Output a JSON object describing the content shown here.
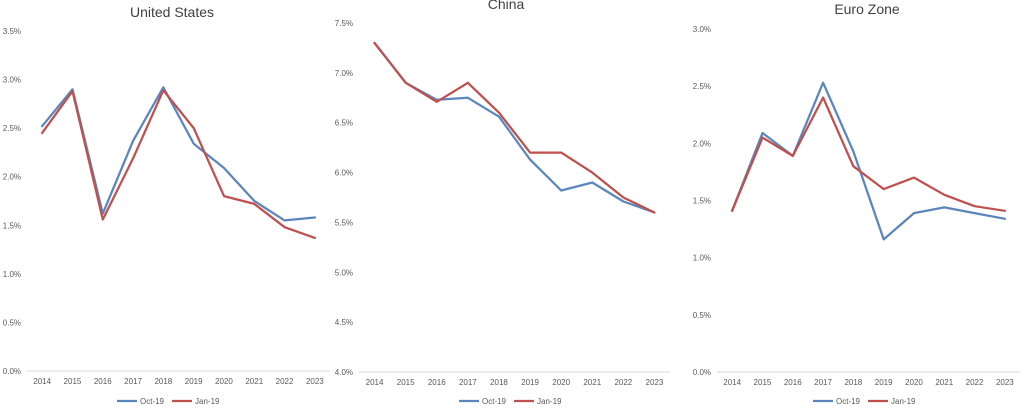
{
  "chart_data": [
    {
      "type": "line",
      "title": "United States",
      "xlabel": "",
      "ylabel": "",
      "categories": [
        "2014",
        "2015",
        "2016",
        "2017",
        "2018",
        "2019",
        "2020",
        "2021",
        "2022",
        "2023"
      ],
      "ylim": [
        0,
        3.5
      ],
      "yticks": [
        0,
        0.5,
        1.0,
        1.5,
        2.0,
        2.5,
        3.0,
        3.5
      ],
      "ytick_labels": [
        "0.0%",
        "0.5%",
        "1.0%",
        "1.5%",
        "2.0%",
        "2.5%",
        "3.0%",
        "3.5%"
      ],
      "grid": false,
      "legend": "bottom",
      "series": [
        {
          "name": "Oct-19",
          "color": "#5b86bd",
          "values": [
            2.52,
            2.9,
            1.62,
            2.37,
            2.92,
            2.34,
            2.09,
            1.75,
            1.55,
            1.58
          ]
        },
        {
          "name": "Jan-19",
          "color": "#c0504d",
          "values": [
            2.45,
            2.88,
            1.56,
            2.19,
            2.89,
            2.5,
            1.8,
            1.72,
            1.48,
            1.37
          ]
        }
      ]
    },
    {
      "type": "line",
      "title": "China",
      "xlabel": "",
      "ylabel": "",
      "categories": [
        "2014",
        "2015",
        "2016",
        "2017",
        "2018",
        "2019",
        "2020",
        "2021",
        "2022",
        "2023"
      ],
      "ylim": [
        4.0,
        7.5
      ],
      "yticks": [
        4.0,
        4.5,
        5.0,
        5.5,
        6.0,
        6.5,
        7.0,
        7.5
      ],
      "ytick_labels": [
        "4.0%",
        "4.5%",
        "5.0%",
        "5.5%",
        "6.0%",
        "6.5%",
        "7.0%",
        "7.5%"
      ],
      "grid": false,
      "legend": "bottom",
      "series": [
        {
          "name": "Oct-19",
          "color": "#5b86bd",
          "values": [
            7.3,
            6.9,
            6.73,
            6.75,
            6.56,
            6.13,
            5.82,
            5.9,
            5.71,
            5.6
          ]
        },
        {
          "name": "Jan-19",
          "color": "#c0504d",
          "values": [
            7.3,
            6.9,
            6.71,
            6.9,
            6.6,
            6.2,
            6.2,
            6.0,
            5.75,
            5.6
          ]
        }
      ]
    },
    {
      "type": "line",
      "title": "Euro Zone",
      "xlabel": "",
      "ylabel": "",
      "categories": [
        "2014",
        "2015",
        "2016",
        "2017",
        "2018",
        "2019",
        "2020",
        "2021",
        "2022",
        "2023"
      ],
      "ylim": [
        0,
        3.0
      ],
      "yticks": [
        0,
        0.5,
        1.0,
        1.5,
        2.0,
        2.5,
        3.0
      ],
      "ytick_labels": [
        "0.0%",
        "0.5%",
        "1.0%",
        "1.5%",
        "2.0%",
        "2.5%",
        "3.0%"
      ],
      "grid": false,
      "legend": "bottom",
      "series": [
        {
          "name": "Oct-19",
          "color": "#5b86bd",
          "values": [
            1.41,
            2.09,
            1.89,
            2.53,
            1.93,
            1.16,
            1.39,
            1.44,
            1.39,
            1.34
          ]
        },
        {
          "name": "Jan-19",
          "color": "#c0504d",
          "values": [
            1.41,
            2.05,
            1.89,
            2.4,
            1.8,
            1.6,
            1.7,
            1.55,
            1.45,
            1.41
          ]
        }
      ]
    }
  ]
}
